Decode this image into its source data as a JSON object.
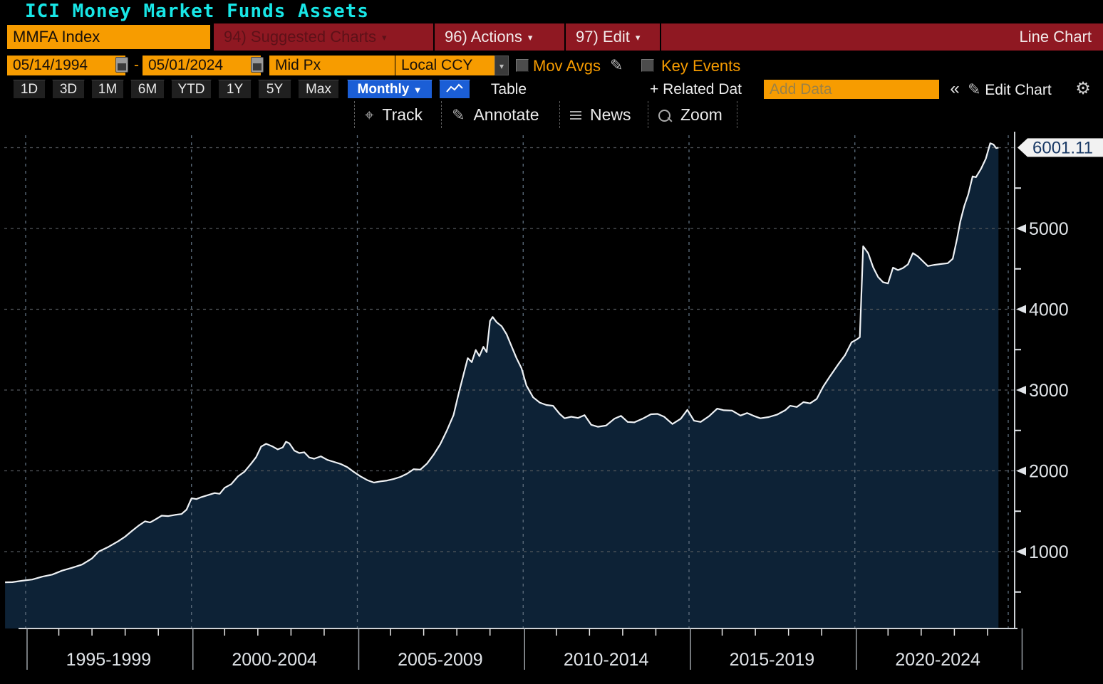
{
  "title": "ICI Money Market Funds Assets",
  "toolbar": {
    "security": "MMFA Index",
    "suggested_charts": "94) Suggested Charts",
    "actions": "96) Actions",
    "edit": "97) Edit",
    "chart_type": "Line Chart"
  },
  "controls": {
    "date_from": "05/14/1994",
    "date_separator": "-",
    "date_to": "05/01/2024",
    "price_field": "Mid Px",
    "currency": "Local CCY",
    "mov_avgs_label": "Mov Avgs",
    "key_events_label": "Key Events"
  },
  "periods": {
    "buttons": [
      "1D",
      "3D",
      "1M",
      "6M",
      "YTD",
      "1Y",
      "5Y",
      "Max"
    ],
    "frequency": "Monthly",
    "table_label": "Table",
    "related_data_label": "+ Related Dat",
    "add_data_placeholder": "Add Data",
    "collapse_label": "«",
    "edit_chart_label": "Edit Chart"
  },
  "chart_tools": {
    "track": "Track",
    "annotate": "Annotate",
    "news": "News",
    "zoom": "Zoom"
  },
  "icons": {
    "dropdown": "▼",
    "small_dropdown": "▾",
    "pencil": "✎",
    "gear": "⚙",
    "track": "⌖"
  },
  "colors": {
    "title_cyan": "#18e6e6",
    "red_bar": "#8f1822",
    "orange": "#f79c00",
    "blue_button": "#1b5ed6",
    "area_fill": "#0d2236",
    "line": "#eef1f4",
    "grid_h": "#54585c",
    "grid_v": "#5e6e7e",
    "axis": "#cdd1d5",
    "axis_label": "#e0e4e8",
    "tag_bg": "#f2f2f2",
    "tag_text": "#1a3a66"
  },
  "chart_data": {
    "type": "area",
    "title": "ICI Money Market Funds Assets",
    "series_name": "MMFA Index",
    "frequency": "Monthly",
    "x_axis_labels": [
      "1995-1999",
      "2000-2004",
      "2005-2009",
      "2010-2014",
      "2015-2019",
      "2020-2024"
    ],
    "x_dividers_years": [
      1995,
      2000,
      2005,
      2010,
      2015,
      2020,
      2025
    ],
    "y_ticks": [
      1000,
      2000,
      3000,
      4000,
      5000
    ],
    "y_minor_ticks": [
      500,
      1500,
      2500,
      3500,
      4500,
      5500
    ],
    "ylim": [
      0,
      6200
    ],
    "xlim": [
      1994.37,
      2024.37
    ],
    "last_value": "6001.11",
    "legend_position": "none",
    "grid": "dashed",
    "points": [
      [
        1994.38,
        620
      ],
      [
        1994.6,
        622
      ],
      [
        1994.9,
        640
      ],
      [
        1995.2,
        655
      ],
      [
        1995.5,
        690
      ],
      [
        1995.8,
        715
      ],
      [
        1996.1,
        765
      ],
      [
        1996.4,
        800
      ],
      [
        1996.7,
        840
      ],
      [
        1997.0,
        915
      ],
      [
        1997.2,
        1000
      ],
      [
        1997.5,
        1060
      ],
      [
        1997.8,
        1130
      ],
      [
        1998.0,
        1185
      ],
      [
        1998.2,
        1255
      ],
      [
        1998.4,
        1320
      ],
      [
        1998.6,
        1375
      ],
      [
        1998.75,
        1360
      ],
      [
        1998.9,
        1395
      ],
      [
        1999.1,
        1445
      ],
      [
        1999.3,
        1440
      ],
      [
        1999.5,
        1455
      ],
      [
        1999.7,
        1465
      ],
      [
        1999.85,
        1520
      ],
      [
        2000.0,
        1660
      ],
      [
        2000.15,
        1650
      ],
      [
        2000.3,
        1675
      ],
      [
        2000.5,
        1700
      ],
      [
        2000.7,
        1725
      ],
      [
        2000.85,
        1715
      ],
      [
        2001.0,
        1790
      ],
      [
        2001.2,
        1835
      ],
      [
        2001.4,
        1930
      ],
      [
        2001.6,
        1990
      ],
      [
        2001.8,
        2090
      ],
      [
        2001.95,
        2170
      ],
      [
        2002.1,
        2300
      ],
      [
        2002.25,
        2335
      ],
      [
        2002.45,
        2300
      ],
      [
        2002.6,
        2265
      ],
      [
        2002.75,
        2290
      ],
      [
        2002.85,
        2360
      ],
      [
        2002.95,
        2340
      ],
      [
        2003.1,
        2250
      ],
      [
        2003.25,
        2220
      ],
      [
        2003.4,
        2230
      ],
      [
        2003.55,
        2165
      ],
      [
        2003.7,
        2150
      ],
      [
        2003.9,
        2180
      ],
      [
        2004.1,
        2135
      ],
      [
        2004.3,
        2110
      ],
      [
        2004.5,
        2085
      ],
      [
        2004.7,
        2045
      ],
      [
        2004.9,
        1985
      ],
      [
        2005.1,
        1930
      ],
      [
        2005.3,
        1885
      ],
      [
        2005.5,
        1855
      ],
      [
        2005.7,
        1870
      ],
      [
        2005.9,
        1880
      ],
      [
        2006.1,
        1900
      ],
      [
        2006.3,
        1925
      ],
      [
        2006.5,
        1965
      ],
      [
        2006.7,
        2020
      ],
      [
        2006.9,
        2015
      ],
      [
        2007.1,
        2090
      ],
      [
        2007.3,
        2200
      ],
      [
        2007.5,
        2330
      ],
      [
        2007.7,
        2500
      ],
      [
        2007.9,
        2690
      ],
      [
        2008.05,
        2950
      ],
      [
        2008.2,
        3190
      ],
      [
        2008.33,
        3395
      ],
      [
        2008.45,
        3345
      ],
      [
        2008.57,
        3495
      ],
      [
        2008.68,
        3420
      ],
      [
        2008.8,
        3535
      ],
      [
        2008.9,
        3470
      ],
      [
        2009.0,
        3855
      ],
      [
        2009.08,
        3905
      ],
      [
        2009.2,
        3840
      ],
      [
        2009.35,
        3790
      ],
      [
        2009.5,
        3690
      ],
      [
        2009.65,
        3540
      ],
      [
        2009.8,
        3395
      ],
      [
        2009.95,
        3270
      ],
      [
        2010.1,
        3055
      ],
      [
        2010.3,
        2910
      ],
      [
        2010.5,
        2845
      ],
      [
        2010.7,
        2815
      ],
      [
        2010.9,
        2805
      ],
      [
        2011.1,
        2705
      ],
      [
        2011.25,
        2650
      ],
      [
        2011.45,
        2670
      ],
      [
        2011.65,
        2655
      ],
      [
        2011.85,
        2690
      ],
      [
        2012.05,
        2570
      ],
      [
        2012.25,
        2545
      ],
      [
        2012.5,
        2560
      ],
      [
        2012.75,
        2645
      ],
      [
        2012.95,
        2680
      ],
      [
        2013.15,
        2605
      ],
      [
        2013.35,
        2600
      ],
      [
        2013.6,
        2645
      ],
      [
        2013.85,
        2700
      ],
      [
        2014.05,
        2705
      ],
      [
        2014.25,
        2670
      ],
      [
        2014.5,
        2580
      ],
      [
        2014.75,
        2645
      ],
      [
        2014.95,
        2755
      ],
      [
        2015.15,
        2620
      ],
      [
        2015.35,
        2605
      ],
      [
        2015.6,
        2675
      ],
      [
        2015.85,
        2770
      ],
      [
        2016.05,
        2750
      ],
      [
        2016.3,
        2745
      ],
      [
        2016.55,
        2685
      ],
      [
        2016.75,
        2715
      ],
      [
        2016.95,
        2680
      ],
      [
        2017.15,
        2650
      ],
      [
        2017.4,
        2665
      ],
      [
        2017.65,
        2695
      ],
      [
        2017.9,
        2750
      ],
      [
        2018.05,
        2805
      ],
      [
        2018.25,
        2790
      ],
      [
        2018.45,
        2850
      ],
      [
        2018.65,
        2835
      ],
      [
        2018.85,
        2890
      ],
      [
        2019.05,
        3045
      ],
      [
        2019.25,
        3170
      ],
      [
        2019.5,
        3320
      ],
      [
        2019.7,
        3430
      ],
      [
        2019.9,
        3590
      ],
      [
        2020.05,
        3625
      ],
      [
        2020.15,
        3655
      ],
      [
        2020.25,
        4780
      ],
      [
        2020.4,
        4695
      ],
      [
        2020.55,
        4520
      ],
      [
        2020.7,
        4400
      ],
      [
        2020.85,
        4335
      ],
      [
        2021.0,
        4320
      ],
      [
        2021.15,
        4515
      ],
      [
        2021.3,
        4485
      ],
      [
        2021.45,
        4510
      ],
      [
        2021.6,
        4555
      ],
      [
        2021.75,
        4695
      ],
      [
        2021.9,
        4655
      ],
      [
        2022.05,
        4595
      ],
      [
        2022.2,
        4535
      ],
      [
        2022.4,
        4550
      ],
      [
        2022.6,
        4560
      ],
      [
        2022.8,
        4570
      ],
      [
        2022.95,
        4625
      ],
      [
        2023.08,
        4870
      ],
      [
        2023.18,
        5090
      ],
      [
        2023.3,
        5280
      ],
      [
        2023.42,
        5425
      ],
      [
        2023.55,
        5645
      ],
      [
        2023.65,
        5635
      ],
      [
        2023.8,
        5735
      ],
      [
        2023.95,
        5865
      ],
      [
        2024.08,
        6055
      ],
      [
        2024.18,
        6040
      ],
      [
        2024.26,
        5995
      ],
      [
        2024.33,
        6001.11
      ]
    ]
  }
}
